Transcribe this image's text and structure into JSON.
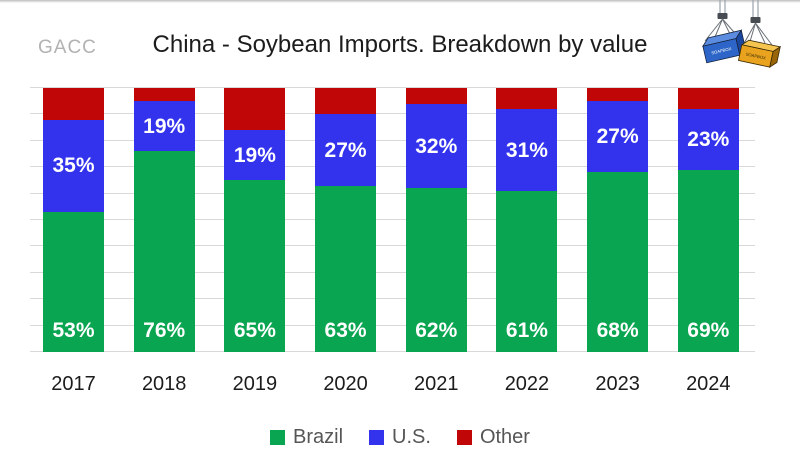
{
  "header": {
    "watermark": "GACC",
    "title": "China - Soybean Imports. Breakdown by value",
    "logo": {
      "name": "shipping-containers",
      "container_text": "SOAPBOX"
    }
  },
  "chart_data": {
    "type": "bar",
    "subtype": "stacked-100-percent",
    "title": "China - Soybean Imports. Breakdown by value",
    "categories": [
      "2017",
      "2018",
      "2019",
      "2020",
      "2021",
      "2022",
      "2023",
      "2024"
    ],
    "series": [
      {
        "name": "Brazil",
        "color": "#0aa551",
        "values": [
          53,
          76,
          65,
          63,
          62,
          61,
          68,
          69
        ],
        "labels_visible": true,
        "label_position": "bottom"
      },
      {
        "name": "U.S.",
        "color": "#3333ee",
        "values": [
          35,
          19,
          19,
          27,
          32,
          31,
          27,
          23
        ],
        "labels_visible": true,
        "label_position": "center"
      },
      {
        "name": "Other",
        "color": "#c00606",
        "values": [
          12,
          5,
          16,
          10,
          6,
          8,
          5,
          8
        ],
        "labels_visible": false,
        "label_position": "none"
      }
    ],
    "value_suffix": "%",
    "ylim": [
      0,
      100
    ],
    "grid_interval_pct": 10,
    "grid_on": true,
    "grid_color": "#d9d9d9",
    "label_color": "#ffffff",
    "legend_position": "bottom",
    "xlabel": "",
    "ylabel": ""
  }
}
